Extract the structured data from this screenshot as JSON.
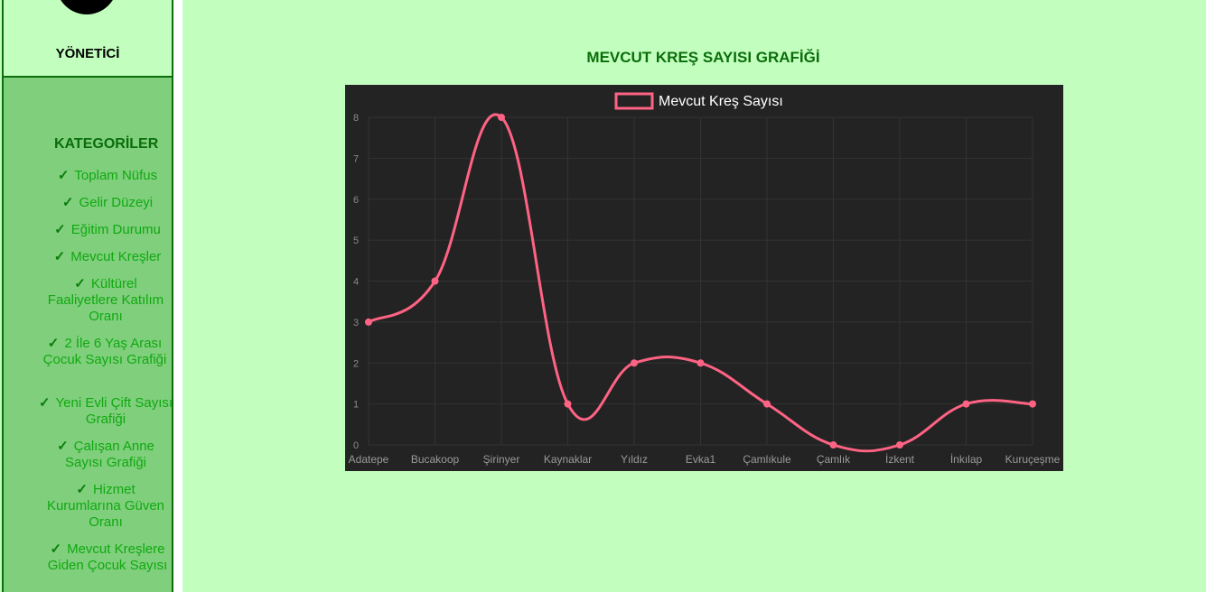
{
  "sidebar": {
    "role": "YÖNETİCİ",
    "category_title": "KATEGORİLER",
    "check_glyph": "✓",
    "items": [
      {
        "label": "Toplam Nüfus"
      },
      {
        "label": "Gelir Düzeyi"
      },
      {
        "label": "Eğitim Durumu"
      },
      {
        "label": "Mevcut Kreşler"
      },
      {
        "label": "Kültürel Faaliyetlere Katılım Oranı"
      },
      {
        "label": "2 İle 6 Yaş Arası Çocuk Sayısı Grafiği"
      },
      {
        "label": "Yeni Evli Çift Sayısı Grafiği"
      },
      {
        "label": "Çalışan Anne Sayısı Grafiği"
      },
      {
        "label": "Hizmet Kurumlarına Güven Oranı"
      },
      {
        "label": "Mevcut Kreşlere Giden Çocuk Sayısı"
      }
    ]
  },
  "colors": {
    "page_bg": "#c2ffbe",
    "sidebar_bg": "#7fcf7c",
    "accent_dark_green": "#0b6d0b",
    "menu_text": "#11a911",
    "chart_bg": "#232323",
    "series_line": "#ff6384"
  },
  "chart_data": {
    "type": "line",
    "title": "MEVCUT KREŞ SAYISI GRAFİĞİ",
    "categories": [
      "Adatepe",
      "Bucakoop",
      "Şirinyer",
      "Kaynaklar",
      "Yıldız",
      "Evka1",
      "Çamlıkule",
      "Çamlık",
      "İzkent",
      "İnkılap",
      "Kuruçeşme"
    ],
    "series": [
      {
        "name": "Mevcut Kreş Sayısı",
        "values": [
          3,
          4,
          8,
          1,
          2,
          2,
          1,
          0,
          0,
          1,
          1
        ]
      }
    ],
    "y_ticks": [
      0,
      1,
      2,
      3,
      4,
      5,
      6,
      7,
      8
    ],
    "ylim": [
      0,
      8
    ],
    "legend": "top",
    "grid": true,
    "smooth": true
  }
}
